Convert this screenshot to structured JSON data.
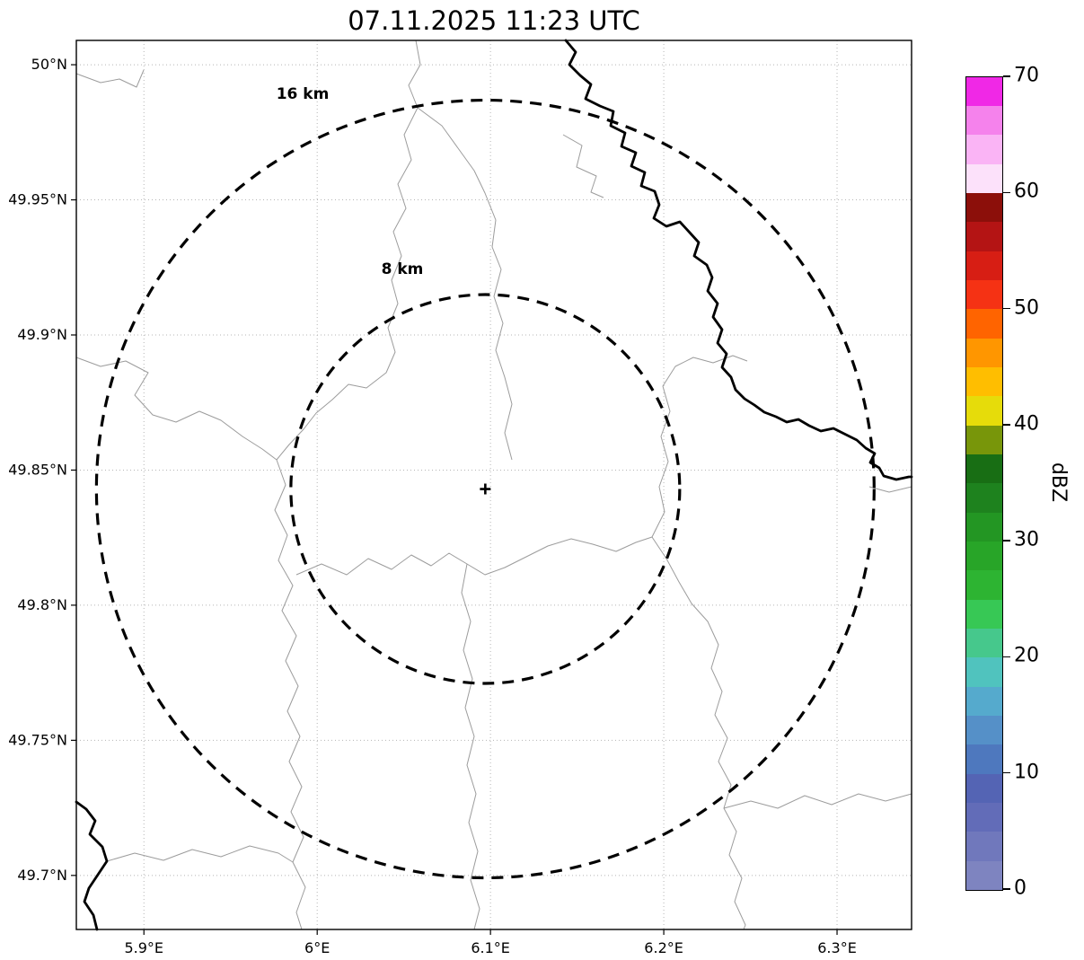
{
  "chart_data": {
    "type": "heatmap",
    "subtype": "weather-radar-ppi-map",
    "title": "07.11.2025 11:23 UTC",
    "xlabel": "",
    "ylabel": "",
    "grid": true,
    "xlim": [
      5.861,
      6.343
    ],
    "ylim": [
      49.68,
      50.009
    ],
    "x_ticks": [
      {
        "value": 5.9,
        "label": "5.9°E"
      },
      {
        "value": 6.0,
        "label": "6°E"
      },
      {
        "value": 6.1,
        "label": "6.1°E"
      },
      {
        "value": 6.2,
        "label": "6.2°E"
      },
      {
        "value": 6.3,
        "label": "6.3°E"
      }
    ],
    "y_ticks": [
      {
        "value": 49.7,
        "label": "49.7°N"
      },
      {
        "value": 49.75,
        "label": "49.75°N"
      },
      {
        "value": 49.8,
        "label": "49.8°N"
      },
      {
        "value": 49.85,
        "label": "49.85°N"
      },
      {
        "value": 49.9,
        "label": "49.9°N"
      },
      {
        "value": 49.95,
        "label": "49.95°N"
      },
      {
        "value": 50.0,
        "label": "50°N"
      }
    ],
    "radar_center": {
      "lon": 6.097,
      "lat": 49.843,
      "marker": "+"
    },
    "range_rings": [
      {
        "radius_km": 8,
        "label": "8 km"
      },
      {
        "radius_km": 16,
        "label": "16 km"
      }
    ],
    "reflectivity_echoes": [],
    "colorbar": {
      "label": "dBZ",
      "min": 0,
      "max": 70,
      "tick_values": [
        0,
        10,
        20,
        30,
        40,
        50,
        60,
        70
      ],
      "segment_step_dbz": 2.5,
      "colors_bottom_to_top": [
        "#7e84c0",
        "#7078bc",
        "#626cb8",
        "#5464b4",
        "#4e78be",
        "#5590c8",
        "#55aacd",
        "#50c3be",
        "#46c88c",
        "#37c855",
        "#2db432",
        "#28a528",
        "#239623",
        "#1e821e",
        "#186e14",
        "#78960a",
        "#e6dc0a",
        "#ffbe00",
        "#ff9600",
        "#ff6400",
        "#f53214",
        "#d71e14",
        "#b41414",
        "#8c0f0a",
        "#fce1fa",
        "#fab4f5",
        "#f582ec",
        "#f028e6"
      ]
    }
  }
}
